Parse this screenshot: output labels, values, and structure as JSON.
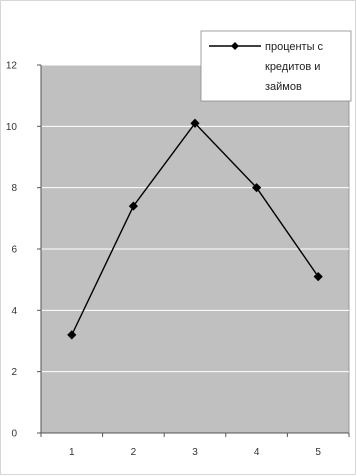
{
  "chart_data": {
    "type": "line",
    "title": "",
    "xlabel": "",
    "ylabel": "",
    "x": [
      1,
      2,
      3,
      4,
      5
    ],
    "series": [
      {
        "name": "проценты с кредитов и займов",
        "legend_lines": [
          "проценты с",
          "кредитов и",
          "займов"
        ],
        "values": [
          3.2,
          7.4,
          10.1,
          8.0,
          5.1
        ],
        "color": "#000000",
        "marker": "diamond"
      }
    ],
    "xlim": [
      0.5,
      5.5
    ],
    "ylim": [
      0,
      12
    ],
    "yticks": [
      0,
      2,
      4,
      6,
      8,
      10,
      12
    ],
    "xticks": [
      1,
      2,
      3,
      4,
      5
    ],
    "grid": "horizontal",
    "legend_position": "top-right",
    "plot_background": "#c0c0c0",
    "grid_color": "#ffffff"
  }
}
